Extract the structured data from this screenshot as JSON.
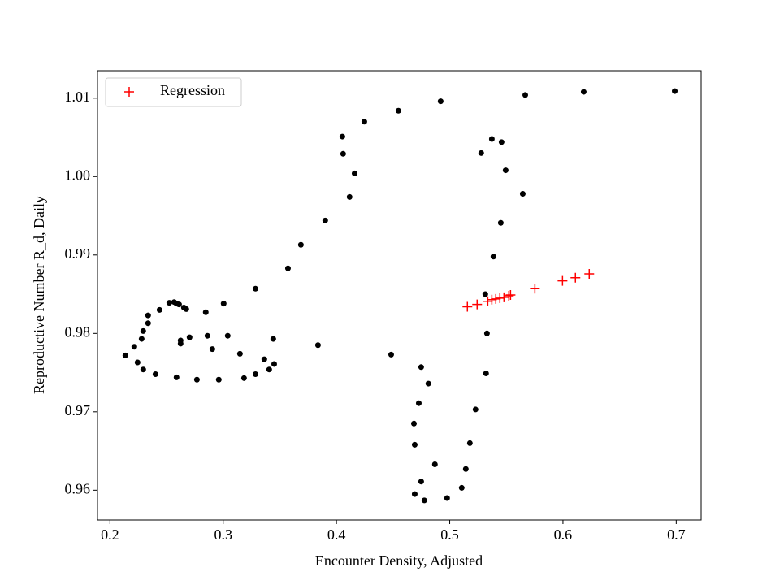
{
  "chart_data": {
    "type": "scatter",
    "x_label": "Encounter Density, Adjusted",
    "y_label": "Reproductive Number R_d, Daily",
    "xlim": [
      0.189,
      0.722
    ],
    "ylim": [
      0.9562,
      1.0135
    ],
    "xticks": [
      0.2,
      0.3,
      0.4,
      0.5,
      0.6,
      0.7
    ],
    "yticks": [
      0.96,
      0.97,
      0.98,
      0.99,
      {
        "value": 1,
        "label": "1.00"
      },
      1.01
    ],
    "grid": false,
    "legend": "upper left",
    "series": [
      {
        "color": "#000000",
        "marker": "circle",
        "x": [
          0.2136,
          0.2215,
          0.2244,
          0.2294,
          0.228,
          0.2294,
          0.2337,
          0.2337,
          0.2402,
          0.2438,
          0.2524,
          0.2567,
          0.2588,
          0.261,
          0.2653,
          0.2674,
          0.2588,
          0.2624,
          0.2624,
          0.2703,
          0.2768,
          0.2846,
          0.2861,
          0.2904,
          0.2961,
          0.3004,
          0.304,
          0.3148,
          0.3184,
          0.3285,
          0.3285,
          0.3363,
          0.3406,
          0.3442,
          0.345,
          0.3572,
          0.3686,
          0.3837,
          0.3901,
          0.4052,
          0.4059,
          0.4116,
          0.416,
          0.4246,
          0.4483,
          0.4547,
          0.4748,
          0.4684,
          0.4691,
          0.4727,
          0.4691,
          0.4748,
          0.4776,
          0.4812,
          0.4869,
          0.492,
          0.4977,
          0.5106,
          0.5142,
          0.5178,
          0.5228,
          0.5278,
          0.5314,
          0.5321,
          0.5329,
          0.5372,
          0.5386,
          0.5451,
          0.5458,
          0.5494,
          0.5645,
          0.5667,
          0.6183,
          0.6987
        ],
        "values": [
          0.9772,
          0.9783,
          0.9763,
          0.9754,
          0.9793,
          0.9803,
          0.9813,
          0.9823,
          0.9748,
          0.983,
          0.9839,
          0.984,
          0.9838,
          0.9837,
          0.9833,
          0.9831,
          0.9744,
          0.9787,
          0.9791,
          0.9795,
          0.9741,
          0.9827,
          0.9797,
          0.978,
          0.9741,
          0.9838,
          0.9797,
          0.9774,
          0.9743,
          0.9748,
          0.9857,
          0.9767,
          0.9754,
          0.9793,
          0.9761,
          0.9883,
          0.9913,
          0.9785,
          0.9944,
          1.0051,
          1.0029,
          0.9974,
          1.0004,
          1.007,
          0.9773,
          1.0084,
          0.9757,
          0.9685,
          0.9658,
          0.9711,
          0.9595,
          0.9611,
          0.9587,
          0.9736,
          0.9633,
          1.0096,
          0.959,
          0.9603,
          0.9627,
          0.966,
          0.9703,
          1.003,
          0.985,
          0.9749,
          0.98,
          1.0048,
          0.9898,
          0.9941,
          1.0044,
          1.0008,
          0.9978,
          1.0104,
          1.0108,
          1.0109
        ]
      },
      {
        "name": "Regression",
        "color": "#ff0000",
        "marker": "plus",
        "x": [
          0.5156,
          0.5242,
          0.5336,
          0.5372,
          0.5407,
          0.5443,
          0.5479,
          0.5522,
          0.5537,
          0.5752,
          0.5996,
          0.611,
          0.6232
        ],
        "values": [
          0.9834,
          0.9837,
          0.9841,
          0.9843,
          0.9844,
          0.9845,
          0.9846,
          0.9848,
          0.9849,
          0.9857,
          0.9867,
          0.9871,
          0.9876
        ]
      }
    ]
  }
}
